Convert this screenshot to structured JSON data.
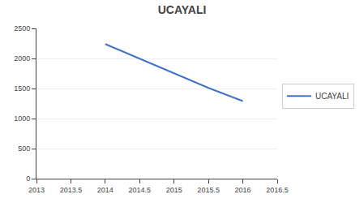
{
  "chart_data": {
    "type": "line",
    "title": "UCAYALI",
    "x": [
      2014,
      2014.5,
      2015.5,
      2016
    ],
    "series": [
      {
        "name": "UCAYALI",
        "color": "#4472C4",
        "values": [
          2240,
          2000,
          1510,
          1290
        ]
      }
    ],
    "xlim": [
      2013,
      2016.5
    ],
    "xticks": [
      2013,
      2013.5,
      2014,
      2014.5,
      2015,
      2015.5,
      2016,
      2016.5
    ],
    "ylim": [
      0,
      2500
    ],
    "yticks": [
      0,
      500,
      1000,
      1500,
      2000,
      2500
    ],
    "grid": "y",
    "legend": "right"
  }
}
